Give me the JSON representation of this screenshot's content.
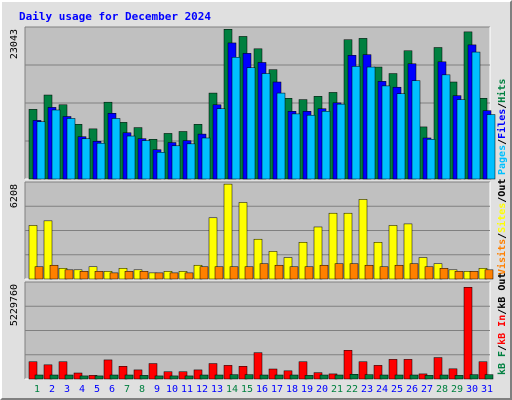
{
  "chart_data": [
    {
      "type": "bar",
      "title": "Daily usage for December 2024",
      "categories": [
        "1",
        "2",
        "3",
        "4",
        "5",
        "6",
        "7",
        "8",
        "9",
        "10",
        "11",
        "12",
        "13",
        "14",
        "15",
        "16",
        "17",
        "18",
        "19",
        "20",
        "21",
        "22",
        "23",
        "24",
        "25",
        "26",
        "27",
        "28",
        "29",
        "30",
        "31"
      ],
      "weekend_days": [
        "1",
        "7",
        "8",
        "14",
        "15",
        "21",
        "22",
        "28",
        "29"
      ],
      "ylabel_parts": [
        "Pages",
        "/",
        "Files",
        "/",
        "Hits"
      ],
      "max_label": "23043",
      "ylim": [
        0,
        23043
      ],
      "series": [
        {
          "name": "Hits",
          "color": "#008040",
          "values": [
            10700,
            12900,
            11400,
            8400,
            7700,
            11800,
            8700,
            7900,
            6100,
            7000,
            7300,
            8400,
            13200,
            23000,
            21900,
            20000,
            16800,
            12400,
            12200,
            12700,
            13300,
            21400,
            21600,
            17200,
            16200,
            19700,
            8000,
            20200,
            14900,
            22600,
            12400
          ]
        },
        {
          "name": "Files",
          "color": "#0000ff",
          "values": [
            9000,
            11000,
            9600,
            6500,
            5800,
            10100,
            7100,
            6200,
            4500,
            5600,
            5900,
            6900,
            11400,
            20900,
            19300,
            17900,
            14900,
            10400,
            10400,
            10800,
            11700,
            19000,
            19100,
            15000,
            14100,
            17700,
            6300,
            18000,
            12800,
            20600,
            10500
          ]
        },
        {
          "name": "Pages",
          "color": "#00c0ff",
          "values": [
            8800,
            10600,
            9300,
            6200,
            5500,
            9300,
            6600,
            5900,
            4100,
            5100,
            5400,
            6300,
            10800,
            18700,
            17100,
            16200,
            13200,
            10000,
            9800,
            10400,
            11500,
            17300,
            17200,
            14300,
            13100,
            15100,
            6100,
            16000,
            12200,
            19500,
            9900
          ]
        }
      ]
    },
    {
      "type": "bar",
      "categories": [
        "1",
        "2",
        "3",
        "4",
        "5",
        "6",
        "7",
        "8",
        "9",
        "10",
        "11",
        "12",
        "13",
        "14",
        "15",
        "16",
        "17",
        "18",
        "19",
        "20",
        "21",
        "22",
        "23",
        "24",
        "25",
        "26",
        "27",
        "28",
        "29",
        "30",
        "31"
      ],
      "ylabel_parts": [
        "Visits",
        "/",
        "Sites",
        "/",
        "Out"
      ],
      "max_label": "6208",
      "ylim": [
        0,
        6208
      ],
      "series": [
        {
          "name": "Visits",
          "color": "#ffff00",
          "values": [
            3500,
            3800,
            700,
            600,
            800,
            500,
            700,
            600,
            400,
            500,
            500,
            900,
            4000,
            6200,
            5000,
            2600,
            1800,
            1400,
            2400,
            3400,
            4300,
            4300,
            5200,
            2400,
            3500,
            3600,
            1400,
            1000,
            600,
            500,
            700
          ]
        },
        {
          "name": "Sites",
          "color": "#ff8000",
          "values": [
            800,
            900,
            600,
            500,
            500,
            400,
            500,
            500,
            400,
            400,
            400,
            800,
            800,
            800,
            800,
            1000,
            900,
            800,
            800,
            900,
            1000,
            1000,
            900,
            800,
            900,
            1000,
            800,
            700,
            500,
            500,
            600
          ]
        }
      ]
    },
    {
      "type": "bar",
      "categories": [
        "1",
        "2",
        "3",
        "4",
        "5",
        "6",
        "7",
        "8",
        "9",
        "10",
        "11",
        "12",
        "13",
        "14",
        "15",
        "16",
        "17",
        "18",
        "19",
        "20",
        "21",
        "22",
        "23",
        "24",
        "25",
        "26",
        "27",
        "28",
        "29",
        "30",
        "31"
      ],
      "ylabel_parts": [
        "kB F",
        "/",
        "kB In",
        "/",
        "kB Out"
      ],
      "max_label": "5229760",
      "ylim": [
        0,
        5229760
      ],
      "series": [
        {
          "name": "kB F",
          "color": "#ff0000",
          "values": [
            950000,
            780000,
            950000,
            330000,
            200000,
            1050000,
            700000,
            500000,
            850000,
            400000,
            400000,
            500000,
            850000,
            750000,
            700000,
            1450000,
            550000,
            450000,
            950000,
            350000,
            280000,
            1580000,
            950000,
            750000,
            1080000,
            1080000,
            280000,
            1180000,
            560000,
            5050000,
            950000
          ]
        },
        {
          "name": "kB In",
          "color": "#008040",
          "values": [
            220000,
            220000,
            220000,
            170000,
            170000,
            220000,
            220000,
            200000,
            170000,
            170000,
            170000,
            220000,
            220000,
            240000,
            240000,
            220000,
            220000,
            220000,
            200000,
            220000,
            220000,
            260000,
            240000,
            220000,
            220000,
            220000,
            200000,
            220000,
            200000,
            240000,
            240000
          ]
        }
      ]
    }
  ],
  "colors": {
    "background": "#e0e0e0",
    "plot_background": "#c0c0c0",
    "title": "#0000ff",
    "weekday_label": "#0000ff",
    "weekend_label": "#008040",
    "tick_text": "#000000"
  }
}
